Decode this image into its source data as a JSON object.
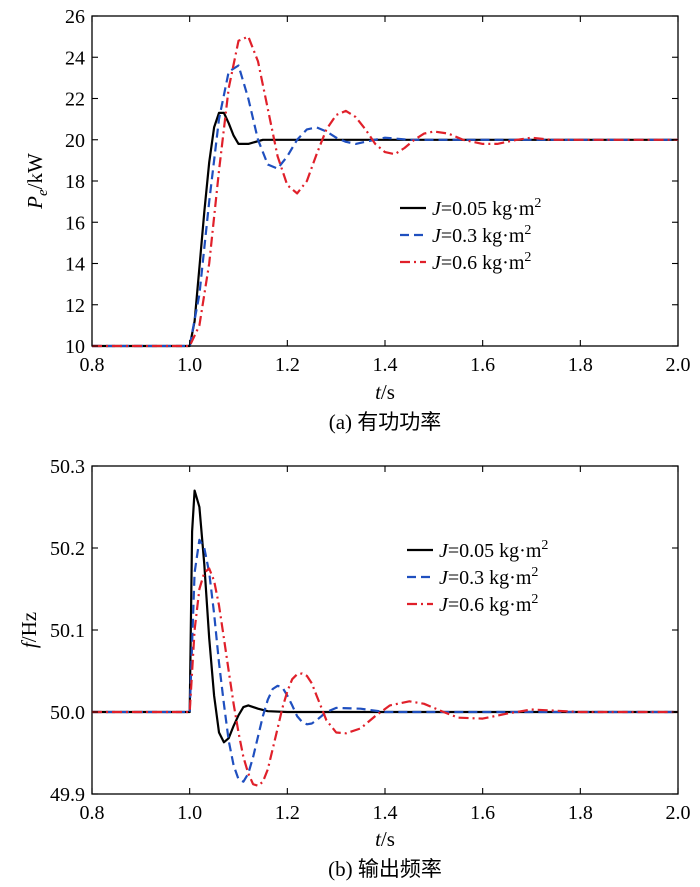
{
  "chart_data": [
    {
      "type": "line",
      "ylabel_var": "P",
      "ylabel_sub": "e",
      "ylabel_unit": "/kW",
      "xlabel_var": "t",
      "xlabel_unit": "/s",
      "caption": "(a) 有功功率",
      "xlim": [
        0.8,
        2.0
      ],
      "ylim": [
        10,
        26
      ],
      "xticks": [
        "0.8",
        "1.0",
        "1.2",
        "1.4",
        "1.6",
        "1.8",
        "2.0"
      ],
      "yticks": [
        "10",
        "12",
        "14",
        "16",
        "18",
        "20",
        "22",
        "24",
        "26"
      ],
      "legend_position": "center-right",
      "series": [
        {
          "name": "J=0.05 kg·m2",
          "legend_var": "J",
          "legend_text": "=0.05 kg·m",
          "legend_sup": "2",
          "color": "#000000",
          "dash": "solid",
          "x": [
            0.8,
            1.0,
            1.01,
            1.02,
            1.03,
            1.04,
            1.05,
            1.06,
            1.07,
            1.08,
            1.09,
            1.1,
            1.12,
            1.15,
            1.2,
            1.3,
            1.5,
            2.0
          ],
          "y": [
            10.0,
            10.0,
            11.2,
            13.8,
            16.5,
            18.9,
            20.6,
            21.3,
            21.3,
            20.8,
            20.2,
            19.8,
            19.8,
            20.0,
            20.0,
            20.0,
            20.0,
            20.0
          ]
        },
        {
          "name": "J=0.3 kg·m2",
          "legend_var": "J",
          "legend_text": "=0.3 kg·m",
          "legend_sup": "2",
          "color": "#1f4fbf",
          "dash": "dashed",
          "x": [
            0.8,
            1.0,
            1.02,
            1.04,
            1.06,
            1.08,
            1.1,
            1.12,
            1.14,
            1.16,
            1.18,
            1.2,
            1.22,
            1.24,
            1.26,
            1.28,
            1.3,
            1.32,
            1.34,
            1.36,
            1.4,
            1.45,
            1.5,
            2.0
          ],
          "y": [
            10.0,
            10.0,
            12.5,
            17.0,
            21.0,
            23.3,
            23.6,
            22.0,
            20.0,
            18.8,
            18.6,
            19.2,
            20.0,
            20.5,
            20.6,
            20.4,
            20.1,
            19.9,
            19.8,
            19.9,
            20.1,
            20.0,
            20.0,
            20.0
          ]
        },
        {
          "name": "J=0.6 kg·m2",
          "legend_var": "J",
          "legend_text": "=0.6 kg·m",
          "legend_sup": "2",
          "color": "#e0202a",
          "dash": "dashdot",
          "x": [
            0.8,
            1.0,
            1.02,
            1.04,
            1.06,
            1.08,
            1.1,
            1.12,
            1.14,
            1.16,
            1.18,
            1.2,
            1.22,
            1.24,
            1.26,
            1.28,
            1.3,
            1.32,
            1.34,
            1.36,
            1.38,
            1.4,
            1.42,
            1.44,
            1.46,
            1.48,
            1.5,
            1.53,
            1.56,
            1.6,
            1.63,
            1.67,
            1.7,
            1.74,
            1.8,
            2.0
          ],
          "y": [
            10.0,
            10.0,
            11.0,
            14.0,
            18.5,
            22.5,
            24.8,
            25.0,
            23.8,
            21.5,
            19.2,
            17.8,
            17.4,
            18.0,
            19.3,
            20.5,
            21.2,
            21.4,
            21.1,
            20.5,
            19.8,
            19.4,
            19.3,
            19.6,
            20.0,
            20.3,
            20.4,
            20.3,
            20.0,
            19.8,
            19.8,
            20.0,
            20.1,
            20.0,
            20.0,
            20.0
          ]
        }
      ]
    },
    {
      "type": "line",
      "ylabel_var": "f",
      "ylabel_sub": "",
      "ylabel_unit": "/Hz",
      "xlabel_var": "t",
      "xlabel_unit": "/s",
      "caption": "(b) 输出频率",
      "xlim": [
        0.8,
        2.0
      ],
      "ylim": [
        49.9,
        50.3
      ],
      "xticks": [
        "0.8",
        "1.0",
        "1.2",
        "1.4",
        "1.6",
        "1.8",
        "2.0"
      ],
      "yticks": [
        "49.9",
        "50.0",
        "50.1",
        "50.2",
        "50.3"
      ],
      "legend_position": "top-right",
      "series": [
        {
          "name": "J=0.05 kg·m2",
          "legend_var": "J",
          "legend_text": "=0.05 kg·m",
          "legend_sup": "2",
          "color": "#000000",
          "dash": "solid",
          "x": [
            0.8,
            1.0,
            1.005,
            1.01,
            1.02,
            1.03,
            1.04,
            1.05,
            1.06,
            1.07,
            1.08,
            1.09,
            1.1,
            1.11,
            1.12,
            1.14,
            1.16,
            1.2,
            1.3,
            2.0
          ],
          "y": [
            50.0,
            50.0,
            50.22,
            50.27,
            50.25,
            50.18,
            50.09,
            50.02,
            49.975,
            49.963,
            49.968,
            49.983,
            49.996,
            50.006,
            50.008,
            50.004,
            50.001,
            50.0,
            50.0,
            50.0
          ]
        },
        {
          "name": "J=0.3 kg·m2",
          "legend_var": "J",
          "legend_text": "=0.3 kg·m",
          "legend_sup": "2",
          "color": "#1f4fbf",
          "dash": "dashed",
          "x": [
            0.8,
            1.0,
            1.01,
            1.02,
            1.03,
            1.04,
            1.05,
            1.06,
            1.07,
            1.08,
            1.09,
            1.1,
            1.11,
            1.12,
            1.13,
            1.14,
            1.15,
            1.16,
            1.17,
            1.18,
            1.19,
            1.2,
            1.21,
            1.22,
            1.23,
            1.24,
            1.25,
            1.26,
            1.28,
            1.3,
            1.35,
            1.4,
            2.0
          ],
          "y": [
            50.0,
            50.0,
            50.17,
            50.21,
            50.2,
            50.17,
            50.12,
            50.06,
            50.01,
            49.965,
            49.935,
            49.918,
            49.915,
            49.925,
            49.945,
            49.97,
            49.995,
            50.015,
            50.028,
            50.032,
            50.03,
            50.02,
            50.008,
            49.995,
            49.988,
            49.985,
            49.986,
            49.99,
            50.0,
            50.005,
            50.004,
            50.0,
            50.0
          ]
        },
        {
          "name": "J=0.6 kg·m2",
          "legend_var": "J",
          "legend_text": "=0.6 kg·m",
          "legend_sup": "2",
          "color": "#e0202a",
          "dash": "dashdot",
          "x": [
            0.8,
            1.0,
            1.01,
            1.02,
            1.03,
            1.04,
            1.05,
            1.06,
            1.07,
            1.08,
            1.09,
            1.1,
            1.11,
            1.12,
            1.13,
            1.14,
            1.15,
            1.16,
            1.17,
            1.18,
            1.19,
            1.2,
            1.21,
            1.22,
            1.23,
            1.24,
            1.25,
            1.26,
            1.27,
            1.28,
            1.3,
            1.32,
            1.35,
            1.38,
            1.41,
            1.45,
            1.48,
            1.52,
            1.55,
            1.6,
            1.65,
            1.7,
            1.8,
            2.0
          ],
          "y": [
            50.0,
            50.0,
            50.1,
            50.15,
            50.17,
            50.175,
            50.16,
            50.13,
            50.09,
            50.05,
            50.01,
            49.975,
            49.945,
            49.925,
            49.912,
            49.91,
            49.915,
            49.93,
            49.955,
            49.98,
            50.005,
            50.025,
            50.04,
            50.046,
            50.047,
            50.044,
            50.035,
            50.02,
            50.005,
            49.99,
            49.975,
            49.974,
            49.98,
            49.995,
            50.008,
            50.013,
            50.01,
            50.0,
            49.993,
            49.992,
            49.998,
            50.003,
            50.0,
            50.0
          ]
        }
      ]
    }
  ]
}
